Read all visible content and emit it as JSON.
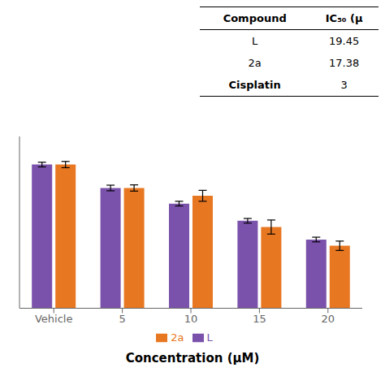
{
  "chart_data": {
    "type": "bar",
    "categories": [
      "Vehicle",
      "5",
      "10",
      "15",
      "20"
    ],
    "series": [
      {
        "name": "L",
        "color": "#7B52AB",
        "values": [
          92,
          77,
          67,
          56,
          44
        ],
        "errors": [
          1.5,
          1.8,
          1.5,
          1.5,
          1.5
        ]
      },
      {
        "name": "2a",
        "color": "#E87722",
        "values": [
          92,
          77,
          72,
          52,
          40
        ],
        "errors": [
          2.0,
          2.0,
          3.5,
          4.5,
          3.0
        ]
      }
    ],
    "ylim": [
      0,
      110
    ],
    "xlabel": "Concentration (μM)",
    "tick_labels": "x",
    "legend": "bottom",
    "table": {
      "columns": [
        "Compound",
        "IC₅₀ (μ"
      ],
      "rows": [
        [
          "L",
          "19.45"
        ],
        [
          "2a",
          "17.38"
        ],
        [
          "Cisplatin",
          "3"
        ]
      ]
    }
  }
}
